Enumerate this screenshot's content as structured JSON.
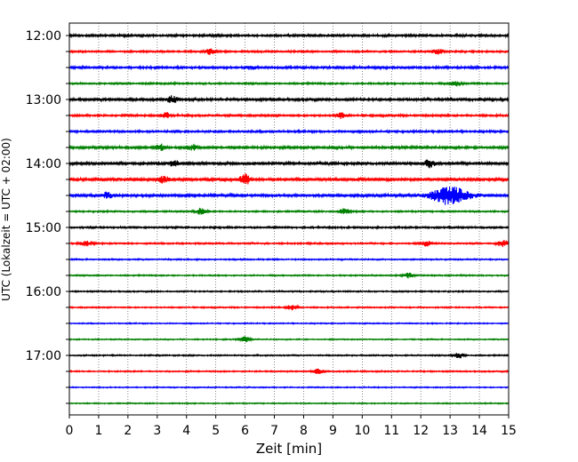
{
  "chart_data": {
    "type": "line",
    "xlabel": "Zeit  [min]",
    "ylabel": "UTC (Lokalzeit = UTC + 02:00)",
    "xlim": [
      0,
      15
    ],
    "x_ticks": [
      0,
      1,
      2,
      3,
      4,
      5,
      6,
      7,
      8,
      9,
      10,
      11,
      12,
      13,
      14,
      15
    ],
    "grid": "vertical dotted",
    "y_tick_labels": [
      "12:00",
      "13:00",
      "14:00",
      "15:00",
      "16:00",
      "17:00"
    ],
    "trace_colors": [
      "#000000",
      "#ff0000",
      "#0000ff",
      "#008000"
    ],
    "traces": [
      {
        "start": "12:00",
        "color": "black",
        "noise": 1.0
      },
      {
        "start": "12:15",
        "color": "red",
        "noise": 0.8
      },
      {
        "start": "12:30",
        "color": "blue",
        "noise": 1.0
      },
      {
        "start": "12:45",
        "color": "green",
        "noise": 0.8
      },
      {
        "start": "13:00",
        "color": "black",
        "noise": 1.1
      },
      {
        "start": "13:15",
        "color": "red",
        "noise": 0.9
      },
      {
        "start": "13:30",
        "color": "blue",
        "noise": 0.9
      },
      {
        "start": "13:45",
        "color": "green",
        "noise": 1.1
      },
      {
        "start": "14:00",
        "color": "black",
        "noise": 1.2
      },
      {
        "start": "14:15",
        "color": "red",
        "noise": 1.4
      },
      {
        "start": "14:30",
        "color": "blue",
        "noise": 1.2
      },
      {
        "start": "14:45",
        "color": "green",
        "noise": 0.7
      },
      {
        "start": "15:00",
        "color": "black",
        "noise": 0.8
      },
      {
        "start": "15:15",
        "color": "red",
        "noise": 0.7
      },
      {
        "start": "15:30",
        "color": "blue",
        "noise": 0.6
      },
      {
        "start": "15:45",
        "color": "green",
        "noise": 0.6
      },
      {
        "start": "16:00",
        "color": "black",
        "noise": 0.6
      },
      {
        "start": "16:15",
        "color": "red",
        "noise": 0.6
      },
      {
        "start": "16:30",
        "color": "blue",
        "noise": 0.5
      },
      {
        "start": "16:45",
        "color": "green",
        "noise": 0.5
      },
      {
        "start": "17:00",
        "color": "black",
        "noise": 0.6
      },
      {
        "start": "17:15",
        "color": "red",
        "noise": 0.6
      },
      {
        "start": "17:30",
        "color": "blue",
        "noise": 0.5
      },
      {
        "start": "17:45",
        "color": "green",
        "noise": 0.5
      }
    ],
    "events": [
      {
        "trace": 1,
        "minute": 4.8,
        "amplitude": 3
      },
      {
        "trace": 1,
        "minute": 12.6,
        "amplitude": 3
      },
      {
        "trace": 2,
        "minute": 6.2,
        "amplitude": 2
      },
      {
        "trace": 3,
        "minute": 13.2,
        "amplitude": 3
      },
      {
        "trace": 4,
        "minute": 3.5,
        "amplitude": 4
      },
      {
        "trace": 5,
        "minute": 3.3,
        "amplitude": 3
      },
      {
        "trace": 5,
        "minute": 9.3,
        "amplitude": 3
      },
      {
        "trace": 7,
        "minute": 3.1,
        "amplitude": 3
      },
      {
        "trace": 7,
        "minute": 4.2,
        "amplitude": 3
      },
      {
        "trace": 8,
        "minute": 3.6,
        "amplitude": 3
      },
      {
        "trace": 8,
        "minute": 12.3,
        "amplitude": 4
      },
      {
        "trace": 9,
        "minute": 6.0,
        "amplitude": 6
      },
      {
        "trace": 9,
        "minute": 3.2,
        "amplitude": 3
      },
      {
        "trace": 10,
        "minute": 13.0,
        "amplitude": 10
      },
      {
        "trace": 10,
        "minute": 1.3,
        "amplitude": 3
      },
      {
        "trace": 11,
        "minute": 4.5,
        "amplitude": 4
      },
      {
        "trace": 11,
        "minute": 9.4,
        "amplitude": 3
      },
      {
        "trace": 13,
        "minute": 0.6,
        "amplitude": 4
      },
      {
        "trace": 13,
        "minute": 14.8,
        "amplitude": 4
      },
      {
        "trace": 13,
        "minute": 12.2,
        "amplitude": 3
      },
      {
        "trace": 15,
        "minute": 11.6,
        "amplitude": 3
      },
      {
        "trace": 17,
        "minute": 7.6,
        "amplitude": 3
      },
      {
        "trace": 19,
        "minute": 6.0,
        "amplitude": 3
      },
      {
        "trace": 20,
        "minute": 13.3,
        "amplitude": 3
      },
      {
        "trace": 21,
        "minute": 8.5,
        "amplitude": 3
      }
    ]
  }
}
